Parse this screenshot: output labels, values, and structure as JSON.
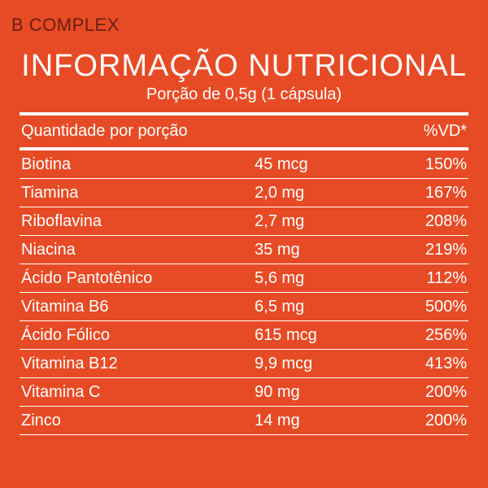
{
  "label": {
    "product_name": "B COMPLEX",
    "title": "INFORMAÇÃO NUTRICIONAL",
    "serving": "Porção de 0,5g (1 cápsula)",
    "header": {
      "qty_label": "Quantidade por porção",
      "dv_label": "%VD*"
    },
    "rows": [
      {
        "name": "Biotina",
        "amount": "45 mcg",
        "dv": "150%"
      },
      {
        "name": "Tiamina",
        "amount": "2,0 mg",
        "dv": "167%"
      },
      {
        "name": "Riboflavina",
        "amount": "2,7 mg",
        "dv": "208%"
      },
      {
        "name": "Niacina",
        "amount": "35 mg",
        "dv": "219%"
      },
      {
        "name": "Ácido Pantotênico",
        "amount": "5,6 mg",
        "dv": "112%"
      },
      {
        "name": "Vitamina B6",
        "amount": "6,5 mg",
        "dv": "500%"
      },
      {
        "name": "Ácido Fólico",
        "amount": "615 mcg",
        "dv": "256%"
      },
      {
        "name": "Vitamina B12",
        "amount": "9,9 mcg",
        "dv": "413%"
      },
      {
        "name": "Vitamina C",
        "amount": "90 mg",
        "dv": "200%"
      },
      {
        "name": "Zinco",
        "amount": "14 mg",
        "dv": "200%"
      }
    ]
  },
  "style": {
    "background_color": "#e74b25",
    "text_color": "#ffffff",
    "product_name_color": "#6a1e0f",
    "rule_color": "#ffffff",
    "title_fontsize": 38,
    "body_fontsize": 20,
    "product_name_fontsize": 22,
    "thick_rule_height": 4,
    "thin_rule_height": 1
  }
}
